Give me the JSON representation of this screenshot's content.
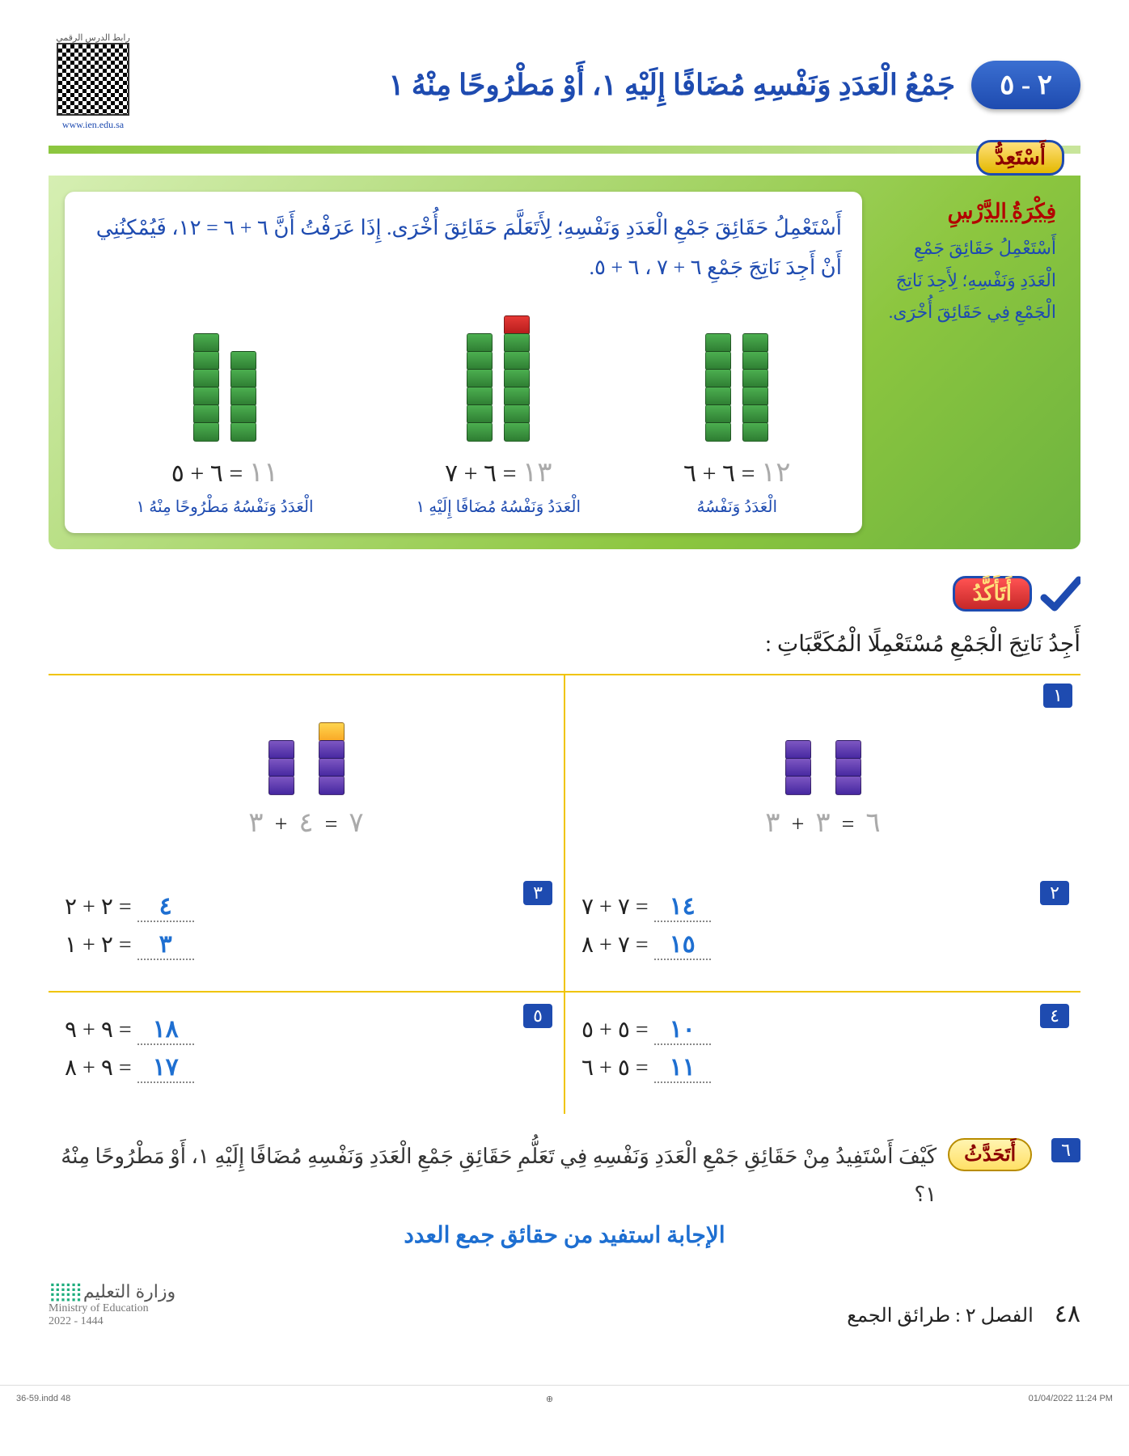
{
  "header": {
    "lesson_number": "٢ - ٥",
    "title": "جَمْعُ الْعَدَدِ وَنَفْسِهِ مُضَافًا إِلَيْهِ ١، أَوْ مَطْرُوحًا مِنْهُ ١",
    "qr_label_top": "رابط الدرس الرقمي",
    "qr_label_bottom": "www.ien.edu.sa"
  },
  "prep": {
    "label": "أَسْتَعِدُّ",
    "idea_title": "فِكْرَةُ الدَّرْسِ",
    "idea_text": "أَسْتَعْمِلُ حَقَائِقَ جَمْعِ الْعَدَدِ وَنَفْسِهِ؛ لِأَجِدَ نَاتِجَ الْجَمْعِ فِي حَقَائِقَ أُخْرَى.",
    "intro": "أَسْتَعْمِلُ حَقَائِقَ جَمْعِ الْعَدَدِ وَنَفْسِهِ؛ لِأَتَعَلَّمَ حَقَائِقَ أُخْرَى. إِذَا عَرَفْتُ أَنَّ ٦ + ٦ = ١٢، فَيُمْكِنُنِي أَنْ أَجِدَ نَاتِجَ جَمْعِ ٦ + ٧ ، ٦ + ٥.",
    "examples": [
      {
        "stacks": [
          {
            "cubes": [
              "green",
              "green",
              "green",
              "green",
              "green",
              "green"
            ]
          },
          {
            "cubes": [
              "green",
              "green",
              "green",
              "green",
              "green",
              "green"
            ]
          }
        ],
        "equation_left": "٦ + ٦ =",
        "equation_ans": "١٢",
        "label": "الْعَدَدُ وَنَفْسُهُ"
      },
      {
        "stacks": [
          {
            "cubes": [
              "red",
              "green",
              "green",
              "green",
              "green",
              "green",
              "green"
            ]
          },
          {
            "cubes": [
              "green",
              "green",
              "green",
              "green",
              "green",
              "green"
            ]
          }
        ],
        "equation_left": "٦ + ٧ =",
        "equation_ans": "١٣",
        "label": "الْعَدَدُ وَنَفْسُهُ مُضَافًا إِلَيْهِ ١"
      },
      {
        "stacks": [
          {
            "cubes": [
              "green",
              "green",
              "green",
              "green",
              "green"
            ]
          },
          {
            "cubes": [
              "green",
              "green",
              "green",
              "green",
              "green",
              "green"
            ]
          }
        ],
        "equation_left": "٦ + ٥ =",
        "equation_ans": "١١",
        "label": "الْعَدَدُ وَنَفْسُهُ مَطْرُوحًا مِنْهُ ١"
      }
    ]
  },
  "confirm": {
    "label": "أَتَأَكَّدُ",
    "instruction": "أَجِدُ نَاتِجَ الْجَمْعِ مُسْتَعْمِلًا الْمُكَعَّبَاتِ :",
    "visual": [
      {
        "badge": "١",
        "stacks": [
          {
            "cubes": [
              "purple",
              "purple",
              "purple"
            ]
          },
          {
            "cubes": [
              "purple",
              "purple",
              "purple"
            ]
          }
        ],
        "lhs_a": "٣",
        "lhs_b": "٣",
        "ans": "٦"
      },
      {
        "badge": "",
        "stacks": [
          {
            "cubes": [
              "purple",
              "purple",
              "purple"
            ]
          },
          {
            "cubes": [
              "yellow",
              "purple",
              "purple",
              "purple"
            ]
          }
        ],
        "lhs_a": "٣",
        "lhs_b": "٤",
        "ans": "٧"
      }
    ],
    "rows": [
      {
        "right": {
          "badge": "٢",
          "lines": [
            {
              "expr": "٧ + ٧ =",
              "ans": "١٤"
            },
            {
              "expr": "٧ + ٨ =",
              "ans": "١٥"
            }
          ]
        },
        "left": {
          "badge": "٣",
          "lines": [
            {
              "expr": "٢ + ٢ =",
              "ans": "٤"
            },
            {
              "expr": "٢ + ١ =",
              "ans": "٣"
            }
          ]
        }
      },
      {
        "right": {
          "badge": "٤",
          "lines": [
            {
              "expr": "٥ + ٥ =",
              "ans": "١٠"
            },
            {
              "expr": "٥ + ٦ =",
              "ans": "١١"
            }
          ]
        },
        "left": {
          "badge": "٥",
          "lines": [
            {
              "expr": "٩ + ٩ =",
              "ans": "١٨"
            },
            {
              "expr": "٩ + ٨ =",
              "ans": "١٧"
            }
          ]
        }
      }
    ]
  },
  "talk": {
    "badge": "٦",
    "label": "أَتَحَدَّثُ",
    "question": "كَيْفَ أَسْتَفِيدُ مِنْ حَقَائِقِ جَمْعِ الْعَدَدِ وَنَفْسِهِ فِي تَعَلُّمِ حَقَائِقِ جَمْعِ الْعَدَدِ وَنَفْسِهِ مُضَافًا إِلَيْهِ ١، أَوْ مَطْرُوحًا مِنْهُ ١؟",
    "answer": "الإجابة استفيد من حقائق جمع العدد"
  },
  "footer": {
    "page": "٤٨",
    "chapter": "الفصل ٢ : طرائق الجمع",
    "moe_ar": "وزارة التعليم",
    "moe_en": "Ministry of Education",
    "moe_year": "2022 - 1444"
  },
  "print": {
    "left": "36-59.indd   48",
    "right": "01/04/2022   11:24 PM"
  },
  "colors": {
    "blue": "#1e4bb0",
    "green_band": "#8cc63f",
    "answer_blue": "#1e6fd1",
    "gold": "#f0c400",
    "red_title": "#b30000"
  }
}
